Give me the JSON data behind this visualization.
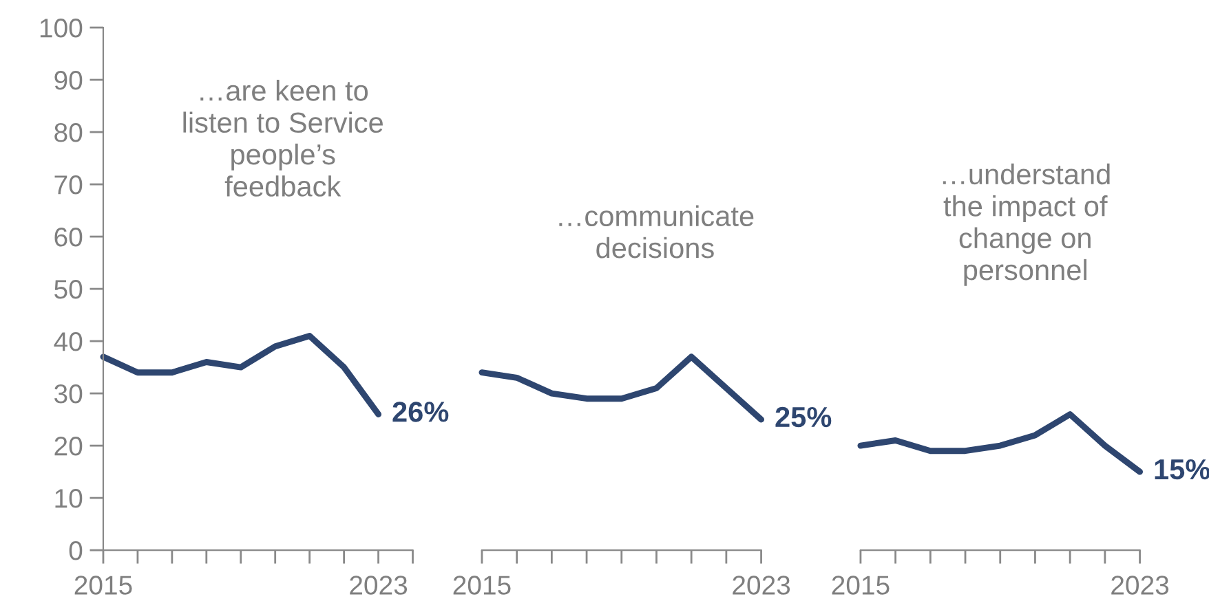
{
  "chart_data": [
    {
      "type": "line",
      "title": "…are keen to\nlisten to Service\npeople’s\nfeedback",
      "x": [
        2015,
        2016,
        2017,
        2018,
        2019,
        2020,
        2021,
        2022,
        2023
      ],
      "series": [
        {
          "color": "#2e4670",
          "values": [
            37,
            34,
            34,
            36,
            35,
            39,
            41,
            35,
            26
          ],
          "value_labels": [
            null,
            null,
            null,
            null,
            null,
            null,
            null,
            null,
            "26%"
          ]
        }
      ],
      "xlim": [
        2015,
        2024
      ],
      "xticks": [
        2015,
        {
          "value": 2016,
          "label": null
        },
        {
          "value": 2017,
          "label": null
        },
        {
          "value": 2018,
          "label": null
        },
        {
          "value": 2019,
          "label": null
        },
        {
          "value": 2020,
          "label": null
        },
        {
          "value": 2021,
          "label": null
        },
        {
          "value": 2022,
          "label": null
        },
        2023,
        {
          "value": 2024,
          "label": null
        }
      ],
      "ylim": [
        0,
        100
      ],
      "yticks": [
        0,
        10,
        20,
        30,
        40,
        50,
        60,
        70,
        80,
        90,
        100
      ],
      "grid": false,
      "legend": false,
      "marker": "none",
      "line_style": "solid"
    },
    {
      "type": "line",
      "title": "…communicate\ndecisions",
      "x": [
        2015,
        2016,
        2017,
        2018,
        2019,
        2020,
        2021,
        2022,
        2023
      ],
      "series": [
        {
          "color": "#2e4670",
          "values": [
            34,
            33,
            30,
            29,
            29,
            31,
            37,
            31,
            25
          ],
          "value_labels": [
            null,
            null,
            null,
            null,
            null,
            null,
            null,
            null,
            "25%"
          ]
        }
      ],
      "xlim": [
        2015,
        2023
      ],
      "xticks": [
        2015,
        {
          "value": 2016,
          "label": null
        },
        {
          "value": 2017,
          "label": null
        },
        {
          "value": 2018,
          "label": null
        },
        {
          "value": 2019,
          "label": null
        },
        {
          "value": 2020,
          "label": null
        },
        {
          "value": 2021,
          "label": null
        },
        {
          "value": 2022,
          "label": null
        },
        2023
      ],
      "ylim": [
        0,
        100
      ],
      "tick_labels": "x",
      "grid": false,
      "legend": false,
      "marker": "none",
      "line_style": "solid"
    },
    {
      "type": "line",
      "title": "…understand\nthe impact of\nchange on\npersonnel",
      "x": [
        2015,
        2016,
        2017,
        2018,
        2019,
        2020,
        2021,
        2022,
        2023
      ],
      "series": [
        {
          "color": "#2e4670",
          "values": [
            20,
            21,
            19,
            19,
            20,
            22,
            26,
            20,
            15
          ],
          "value_labels": [
            null,
            null,
            null,
            null,
            null,
            null,
            null,
            null,
            "15%"
          ]
        }
      ],
      "xlim": [
        2015,
        2023
      ],
      "xticks": [
        2015,
        {
          "value": 2016,
          "label": null
        },
        {
          "value": 2017,
          "label": null
        },
        {
          "value": 2018,
          "label": null
        },
        {
          "value": 2019,
          "label": null
        },
        {
          "value": 2020,
          "label": null
        },
        {
          "value": 2021,
          "label": null
        },
        {
          "value": 2022,
          "label": null
        },
        2023
      ],
      "ylim": [
        0,
        100
      ],
      "tick_labels": "x",
      "grid": false,
      "legend": false,
      "marker": "none",
      "line_style": "solid"
    }
  ]
}
